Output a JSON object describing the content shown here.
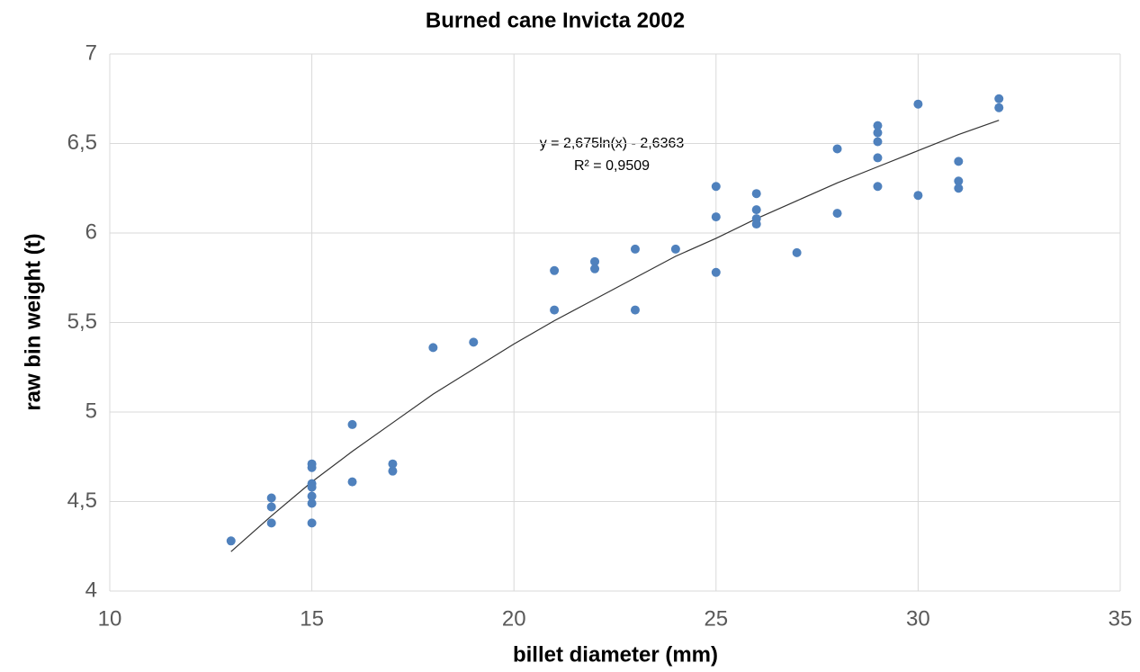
{
  "chart_data": {
    "type": "scatter",
    "title": "Burned cane Invicta 2002",
    "x_label": "billet diameter (mm)",
    "y_label": "raw bin weight (t)",
    "annotations": [
      "y = 2,675ln(x) - 2,6363",
      "R² = 0,9509"
    ],
    "series": [
      {
        "name": "raw bin weight",
        "color": "#4f81bd",
        "x": [
          13,
          14,
          14,
          14,
          15,
          15,
          15,
          15,
          15,
          15,
          15,
          16,
          16,
          17,
          17,
          18,
          19,
          21,
          21,
          22,
          22,
          23,
          23,
          24,
          25,
          25,
          25,
          26,
          26,
          26,
          26,
          27,
          28,
          28,
          29,
          29,
          29,
          29,
          29,
          30,
          30,
          31,
          31,
          31,
          32,
          32
        ],
        "values": [
          4.28,
          4.52,
          4.47,
          4.38,
          4.71,
          4.69,
          4.6,
          4.58,
          4.53,
          4.49,
          4.38,
          4.93,
          4.61,
          4.71,
          4.67,
          5.36,
          5.39,
          5.79,
          5.57,
          5.84,
          5.8,
          5.91,
          5.57,
          5.91,
          6.26,
          6.09,
          5.78,
          6.22,
          6.13,
          6.08,
          6.05,
          5.89,
          6.47,
          6.11,
          6.6,
          6.56,
          6.51,
          6.42,
          6.26,
          6.72,
          6.21,
          6.4,
          6.29,
          6.25,
          6.75,
          6.7
        ]
      }
    ],
    "trendline": {
      "color": "#333333",
      "x": [
        13,
        14,
        15,
        16,
        17,
        18,
        19,
        20,
        21,
        22,
        23,
        24,
        25,
        26,
        27,
        28,
        29,
        30,
        31,
        32
      ],
      "values": [
        4.22,
        4.42,
        4.61,
        4.78,
        4.94,
        5.1,
        5.24,
        5.38,
        5.51,
        5.63,
        5.75,
        5.87,
        5.97,
        6.08,
        6.18,
        6.28,
        6.37,
        6.46,
        6.55,
        6.63
      ]
    },
    "xlim": [
      10,
      35
    ],
    "xticks": [
      10,
      15,
      20,
      25,
      30,
      35
    ],
    "ylim": [
      4,
      7
    ],
    "yticks": [
      4,
      {
        "value": 4.5,
        "label": "4,5"
      },
      5,
      {
        "value": 5.5,
        "label": "5,5"
      },
      6,
      {
        "value": 6.5,
        "label": "6,5"
      },
      7
    ],
    "grid": true
  }
}
